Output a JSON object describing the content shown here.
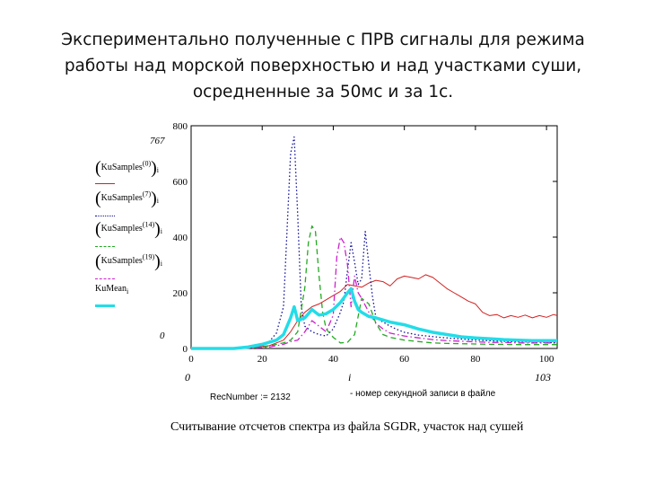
{
  "slide": {
    "title": "Экспериментально полученные с  ПРВ сигналы для режима работы над морской поверхностью и над участками суши, осредненные за 50мс и за 1с."
  },
  "chart_data": {
    "type": "line",
    "xlim": [
      0,
      103
    ],
    "ylim": [
      0,
      800
    ],
    "xticks": [
      0,
      20,
      40,
      60,
      80,
      100
    ],
    "yticks": [
      0,
      200,
      400,
      600,
      800
    ],
    "x_range_labels": {
      "min": "0",
      "max": "103"
    },
    "x_axis_var": "i",
    "y_range_labels": {
      "max": "767",
      "min": "0"
    },
    "series": [
      {
        "name": "(KuSamples⁽⁰⁾)ᵢ",
        "label_main": "KuSamples",
        "label_sup": "(0)",
        "label_sub": "i",
        "color": "#d42020",
        "style": "solid",
        "width": 1,
        "x": [
          0,
          10,
          14,
          18,
          22,
          24,
          26,
          28,
          30,
          32,
          34,
          36,
          38,
          40,
          42,
          44,
          46,
          48,
          50,
          52,
          54,
          56,
          58,
          60,
          62,
          64,
          66,
          68,
          70,
          72,
          74,
          76,
          78,
          80,
          82,
          84,
          86,
          88,
          90,
          92,
          94,
          96,
          98,
          100,
          102,
          103
        ],
        "y": [
          0,
          0,
          2,
          5,
          10,
          20,
          30,
          60,
          100,
          130,
          150,
          160,
          175,
          190,
          205,
          230,
          225,
          220,
          235,
          245,
          240,
          225,
          250,
          260,
          255,
          250,
          265,
          255,
          235,
          215,
          200,
          185,
          170,
          160,
          130,
          118,
          122,
          110,
          118,
          112,
          120,
          110,
          118,
          112,
          122,
          118
        ]
      },
      {
        "name": "(KuSamples⁽⁷⁾)ᵢ",
        "label_main": "KuSamples",
        "label_sup": "(7)",
        "label_sub": "i",
        "color": "#111199",
        "style": "dotted",
        "width": 1.3,
        "x": [
          0,
          12,
          16,
          20,
          22,
          24,
          26,
          27,
          28,
          29,
          30,
          31,
          32,
          34,
          36,
          38,
          40,
          42,
          43,
          44,
          45,
          46,
          47,
          48,
          49,
          50,
          51,
          52,
          54,
          56,
          58,
          60,
          64,
          70,
          80,
          90,
          100,
          103
        ],
        "y": [
          0,
          0,
          5,
          10,
          25,
          55,
          150,
          430,
          700,
          760,
          480,
          150,
          80,
          60,
          50,
          45,
          70,
          130,
          170,
          280,
          380,
          310,
          230,
          250,
          420,
          300,
          190,
          110,
          95,
          80,
          68,
          58,
          48,
          40,
          30,
          25,
          22,
          20
        ]
      },
      {
        "name": "(KuSamples⁽¹⁴⁾)ᵢ",
        "label_main": "KuSamples",
        "label_sup": "(14)",
        "label_sub": "i",
        "color": "#22aa22",
        "style": "dashed",
        "width": 1.3,
        "x": [
          0,
          14,
          18,
          22,
          24,
          26,
          28,
          30,
          32,
          33,
          34,
          35,
          36,
          37,
          38,
          40,
          42,
          44,
          46,
          48,
          50,
          52,
          54,
          56,
          60,
          64,
          68,
          72,
          76,
          80,
          84,
          88,
          92,
          96,
          100,
          103
        ],
        "y": [
          0,
          0,
          3,
          8,
          15,
          20,
          30,
          60,
          220,
          380,
          440,
          420,
          260,
          130,
          70,
          40,
          20,
          22,
          50,
          180,
          160,
          90,
          50,
          40,
          30,
          25,
          20,
          18,
          17,
          16,
          15,
          15,
          14,
          14,
          14,
          14
        ]
      },
      {
        "name": "(KuSamples⁽¹⁹⁾)ᵢ",
        "label_main": "KuSamples",
        "label_sup": "(19)",
        "label_sub": "i",
        "color": "#cc22cc",
        "style": "dashdot",
        "width": 1.3,
        "x": [
          0,
          14,
          18,
          22,
          24,
          26,
          28,
          30,
          32,
          34,
          36,
          38,
          40,
          41,
          42,
          43,
          44,
          45,
          46,
          47,
          48,
          50,
          52,
          54,
          56,
          60,
          64,
          68,
          72,
          76,
          80,
          84,
          88,
          92,
          96,
          100,
          103
        ],
        "y": [
          0,
          0,
          2,
          5,
          10,
          15,
          25,
          30,
          60,
          100,
          80,
          60,
          120,
          330,
          400,
          380,
          300,
          150,
          260,
          200,
          180,
          130,
          90,
          70,
          55,
          45,
          38,
          32,
          28,
          26,
          24,
          22,
          22,
          20,
          20,
          20,
          20
        ]
      },
      {
        "name": "KuMeanᵢ",
        "label_main": "KuMean",
        "label_sup": "",
        "label_sub": "i",
        "color": "#22dde8",
        "style": "solid",
        "width": 3.5,
        "x": [
          0,
          12,
          16,
          20,
          24,
          26,
          28,
          29,
          30,
          32,
          34,
          35,
          36,
          38,
          40,
          42,
          44,
          45,
          46,
          47,
          48,
          50,
          52,
          56,
          60,
          64,
          68,
          72,
          76,
          80,
          84,
          88,
          92,
          96,
          100,
          103
        ],
        "y": [
          0,
          0,
          5,
          15,
          30,
          50,
          110,
          150,
          100,
          110,
          140,
          130,
          120,
          125,
          140,
          165,
          200,
          215,
          170,
          140,
          130,
          115,
          110,
          95,
          85,
          70,
          58,
          50,
          42,
          38,
          35,
          32,
          30,
          28,
          28,
          28
        ]
      }
    ]
  },
  "annotations": {
    "rec_number": "RecNumber := 2132",
    "rec_note": "- номер секундной записи в файле",
    "caption": "Считывание отсчетов спектра из файла SGDR, участок над сушей"
  },
  "colors": {
    "frame": "#000000",
    "background": "#ffffff"
  }
}
